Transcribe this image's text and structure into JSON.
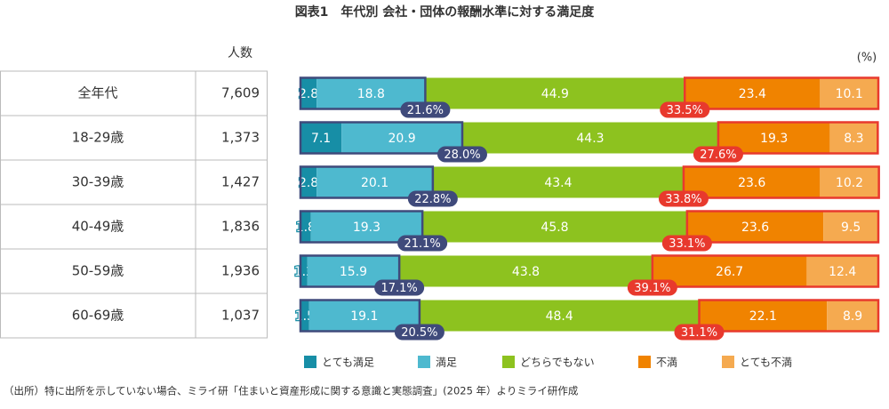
{
  "chart_data": {
    "type": "bar",
    "orientation": "horizontal",
    "stacked": true,
    "title": "図表1　年代別 会社・団体の報酬水準に対する満足度",
    "count_header": "人数",
    "unit_label": "(%)",
    "categories": [
      "全年代",
      "18-29歳",
      "30-39歳",
      "40-49歳",
      "50-59歳",
      "60-69歳"
    ],
    "counts": [
      "7,609",
      "1,373",
      "1,427",
      "1,836",
      "1,936",
      "1,037"
    ],
    "xlim": [
      0,
      100
    ],
    "series": [
      {
        "name": "とても満足",
        "color": "#178ea6",
        "values": [
          2.8,
          7.1,
          2.8,
          1.8,
          1.2,
          1.5
        ]
      },
      {
        "name": "満足",
        "color": "#4eb9cf",
        "values": [
          18.8,
          20.9,
          20.1,
          19.3,
          15.9,
          19.1
        ]
      },
      {
        "name": "どちらでもない",
        "color": "#8dc21f",
        "values": [
          44.9,
          44.3,
          43.4,
          45.8,
          43.8,
          48.4
        ]
      },
      {
        "name": "不満",
        "color": "#f08300",
        "values": [
          23.4,
          19.3,
          23.6,
          23.6,
          26.7,
          22.1
        ]
      },
      {
        "name": "とても不満",
        "color": "#f5aa50",
        "values": [
          10.1,
          8.3,
          10.2,
          9.5,
          12.4,
          8.9
        ]
      }
    ],
    "satisfied_total": {
      "color": "#3f4a7b",
      "values": [
        21.6,
        28.0,
        22.8,
        21.1,
        17.1,
        20.5
      ],
      "value_labels": [
        "21.6%",
        "28.0%",
        "22.8%",
        "21.1%",
        "17.1%",
        "20.5%"
      ]
    },
    "dissatisfied_total": {
      "color": "#e8392d",
      "values": [
        33.5,
        27.6,
        33.8,
        33.1,
        39.1,
        31.1
      ],
      "value_labels": [
        "33.5%",
        "27.6%",
        "33.8%",
        "33.1%",
        "39.1%",
        "31.1%"
      ]
    },
    "note": "（出所）特に出所を示していない場合、ミライ研「住まいと資産形成に関する意識と実態調査」(2025 年）よりミライ研作成"
  }
}
